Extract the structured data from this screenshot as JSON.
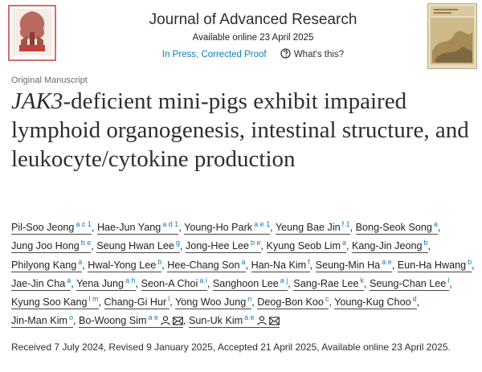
{
  "header": {
    "journal": "Journal of Advanced Research",
    "available_online": "Available online 23 April 2025",
    "status_link": "In Press, Corrected Proof",
    "help_link": "What's this?"
  },
  "article": {
    "type": "Original Manuscript",
    "title_italic": "JAK3",
    "title_rest": "-deficient mini-pigs exhibit impaired lymphoid organogenesis, intestinal structure, and leukocyte/cytokine production",
    "author_separator": ",",
    "authors": [
      {
        "name": "Pil-Soo Jeong",
        "sup": "a c 1"
      },
      {
        "name": "Hae-Jun Yang",
        "sup": "a d 1"
      },
      {
        "name": "Young-Ho Park",
        "sup": "a e 1"
      },
      {
        "name": "Yeung Bae Jin",
        "sup": "f 1"
      },
      {
        "name": "Bong-Seok Song",
        "sup": "a"
      },
      {
        "name": "Jung Joo Hong",
        "sup": "b e"
      },
      {
        "name": "Seung Hwan Lee",
        "sup": "g"
      },
      {
        "name": "Jong-Hee Lee",
        "sup": "b e"
      },
      {
        "name": "Kyung Seob Lim",
        "sup": "a"
      },
      {
        "name": "Kang-Jin Jeong",
        "sup": "b"
      },
      {
        "name": "Philyong Kang",
        "sup": "a"
      },
      {
        "name": "Hwal-Yong Lee",
        "sup": "b"
      },
      {
        "name": "Hee-Chang Son",
        "sup": "a"
      },
      {
        "name": "Han-Na Kim",
        "sup": "f"
      },
      {
        "name": "Seung-Min Ha",
        "sup": "a e"
      },
      {
        "name": "Eun-Ha Hwang",
        "sup": "b"
      },
      {
        "name": "Jae-Jin Cha",
        "sup": "a"
      },
      {
        "name": "Yena Jung",
        "sup": "a h"
      },
      {
        "name": "Seon-A Choi",
        "sup": "a i"
      },
      {
        "name": "Sanghoon Lee",
        "sup": "a j"
      },
      {
        "name": "Sang-Rae Lee",
        "sup": "k"
      },
      {
        "name": "Seung-Chan Lee",
        "sup": "l"
      },
      {
        "name": "Kyung Soo Kang",
        "sup": "l m"
      },
      {
        "name": "Chang-Gi Hur",
        "sup": "l"
      },
      {
        "name": "Yong Woo Jung",
        "sup": "n"
      },
      {
        "name": "Deog-Bon Koo",
        "sup": "c"
      },
      {
        "name": "Young-Kug Choo",
        "sup": "d"
      },
      {
        "name": "Jin-Man Kim",
        "sup": "o"
      },
      {
        "name": "Bo-Woong Sim",
        "sup": "a e",
        "corresponding": true
      },
      {
        "name": "Sun-Uk Kim",
        "sup": "a e",
        "corresponding": true
      }
    ],
    "dates": "Received 7 July 2024, Revised 9 January 2025, Accepted 21 April 2025, Available online 23 April 2025."
  }
}
